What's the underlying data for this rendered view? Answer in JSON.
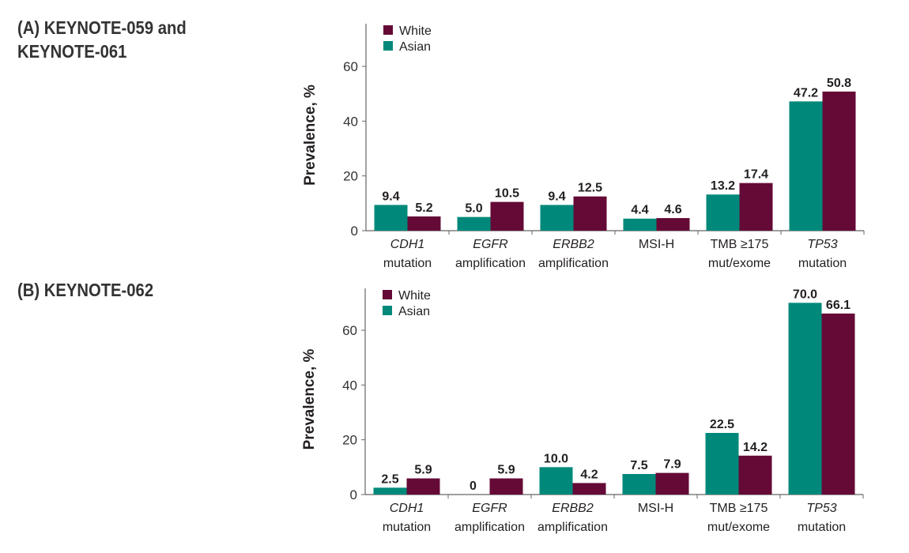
{
  "colors": {
    "White": "#650a36",
    "Asian": "#00897a"
  },
  "chart_data": [
    {
      "type": "bar",
      "title": "(A) KEYNOTE-059 and KEYNOTE-061",
      "ylabel": "Prevalence, %",
      "xlabel": "",
      "ylim": [
        0,
        75
      ],
      "yticks": [
        "0",
        "20",
        "40",
        "60"
      ],
      "grid": false,
      "legend": "top-left",
      "categories": [
        {
          "line1": "CDH1",
          "line2": "mutation",
          "italic": true
        },
        {
          "line1": "EGFR",
          "line2": "amplification",
          "italic": true
        },
        {
          "line1": "ERBB2",
          "line2": "amplification",
          "italic": true
        },
        {
          "line1": "MSI-H",
          "line2": "",
          "italic": false
        },
        {
          "line1": "TMB ≥175",
          "line2": "mut/exome",
          "italic": false
        },
        {
          "line1": "TP53",
          "line2": "mutation",
          "italic": true
        }
      ],
      "series": [
        {
          "name": "Asian",
          "values": [
            9.4,
            5.0,
            9.4,
            4.4,
            13.2,
            47.2
          ],
          "labels": [
            "9.4",
            "5.0",
            "9.4",
            "4.4",
            "13.2",
            "47.2"
          ]
        },
        {
          "name": "White",
          "values": [
            5.2,
            10.5,
            12.5,
            4.6,
            17.4,
            50.8
          ],
          "labels": [
            "5.2",
            "10.5",
            "12.5",
            "4.6",
            "17.4",
            "50.8"
          ]
        }
      ]
    },
    {
      "type": "bar",
      "title": "(B) KEYNOTE-062",
      "ylabel": "Prevalence, %",
      "xlabel": "",
      "ylim": [
        0,
        75
      ],
      "yticks": [
        "0",
        "20",
        "40",
        "60"
      ],
      "grid": false,
      "legend": "top-left",
      "categories": [
        {
          "line1": "CDH1",
          "line2": "mutation",
          "italic": true
        },
        {
          "line1": "EGFR",
          "line2": "amplification",
          "italic": true
        },
        {
          "line1": "ERBB2",
          "line2": "amplification",
          "italic": true
        },
        {
          "line1": "MSI-H",
          "line2": "",
          "italic": false
        },
        {
          "line1": "TMB ≥175",
          "line2": "mut/exome",
          "italic": false
        },
        {
          "line1": "TP53",
          "line2": "mutation",
          "italic": true
        }
      ],
      "series": [
        {
          "name": "Asian",
          "values": [
            2.5,
            0,
            10.0,
            7.5,
            22.5,
            70.0
          ],
          "labels": [
            "2.5",
            "0",
            "10.0",
            "7.5",
            "22.5",
            "70.0"
          ]
        },
        {
          "name": "White",
          "values": [
            5.9,
            5.9,
            4.2,
            7.9,
            14.2,
            66.1
          ],
          "labels": [
            "5.9",
            "5.9",
            "4.2",
            "7.9",
            "14.2",
            "66.1"
          ]
        }
      ]
    }
  ],
  "titles": {
    "a_line1": "(A) KEYNOTE-059 and",
    "a_line2": "KEYNOTE-061",
    "b_line1": "(B) KEYNOTE-062"
  },
  "legend_order": [
    "White",
    "Asian"
  ]
}
